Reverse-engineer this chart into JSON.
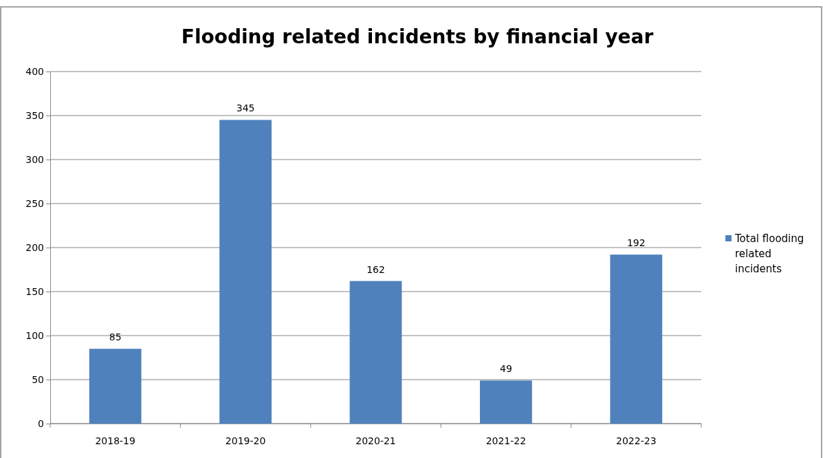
{
  "chart_data": {
    "type": "bar",
    "title": "Flooding related incidents by financial year",
    "categories": [
      "2018-19",
      "2019-20",
      "2020-21",
      "2021-22",
      "2022-23"
    ],
    "series": [
      {
        "name": "Total flooding related incidents",
        "color": "#4f81bd",
        "values": [
          85,
          345,
          162,
          49,
          192
        ]
      }
    ],
    "ylim": [
      0,
      400
    ],
    "yticks": [
      0,
      50,
      100,
      150,
      200,
      250,
      300,
      350,
      400
    ],
    "grid": "y",
    "legend": "right",
    "data_labels": true
  }
}
